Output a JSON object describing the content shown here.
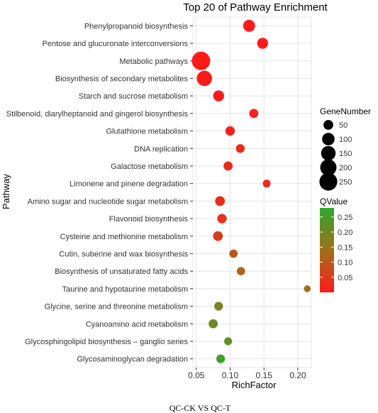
{
  "chart_data": {
    "type": "scatter",
    "title": "Top 20 of Pathway Enrichment",
    "xlabel": "RichFactor",
    "ylabel": "Pathway",
    "xlim": [
      0.045,
      0.22
    ],
    "xticks": [
      "0.05",
      "0.10",
      "0.15",
      "0.20"
    ],
    "xtick_values": [
      0.05,
      0.1,
      0.15,
      0.2
    ],
    "grid": true,
    "legend_placement": "right",
    "size_legend": {
      "title": "GeneNumber",
      "items": [
        {
          "label": "50",
          "value": 50
        },
        {
          "label": "100",
          "value": 100
        },
        {
          "label": "150",
          "value": 150
        },
        {
          "label": "200",
          "value": 200
        },
        {
          "label": "250",
          "value": 250
        }
      ]
    },
    "color_legend": {
      "title": "QValue",
      "ticks": [
        "0.25",
        "0.20",
        "0.15",
        "0.10",
        "0.05"
      ],
      "tick_values": [
        0.25,
        0.2,
        0.15,
        0.1,
        0.05
      ],
      "range": [
        0.0,
        0.28
      ],
      "low_color": "#ff1a1a",
      "mid_color": "#a0701a",
      "high_color": "#2ea82e"
    },
    "points": [
      {
        "pathway": "Phenylpropanoid biosynthesis",
        "rich_factor": 0.128,
        "gene_number": 90,
        "qvalue": 0.0
      },
      {
        "pathway": "Pentose and glucuronate interconversions",
        "rich_factor": 0.148,
        "gene_number": 70,
        "qvalue": 0.0
      },
      {
        "pathway": "Metabolic pathways",
        "rich_factor": 0.057,
        "gene_number": 270,
        "qvalue": 0.0
      },
      {
        "pathway": "Biosynthesis of secondary metabolites",
        "rich_factor": 0.062,
        "gene_number": 170,
        "qvalue": 0.0
      },
      {
        "pathway": "Starch and sucrose metabolism",
        "rich_factor": 0.083,
        "gene_number": 70,
        "qvalue": 0.0
      },
      {
        "pathway": "Stilbenoid, diarylheptanoid and gingerol biosynthesis",
        "rich_factor": 0.135,
        "gene_number": 40,
        "qvalue": 0.01
      },
      {
        "pathway": "Glutathione metabolism",
        "rich_factor": 0.1,
        "gene_number": 45,
        "qvalue": 0.01
      },
      {
        "pathway": "DNA replication",
        "rich_factor": 0.115,
        "gene_number": 35,
        "qvalue": 0.02
      },
      {
        "pathway": "Galactose metabolism",
        "rich_factor": 0.097,
        "gene_number": 40,
        "qvalue": 0.02
      },
      {
        "pathway": "Limonene and pinene degradation",
        "rich_factor": 0.154,
        "gene_number": 25,
        "qvalue": 0.03
      },
      {
        "pathway": "Amino sugar and nucleotide sugar metabolism",
        "rich_factor": 0.085,
        "gene_number": 50,
        "qvalue": 0.03
      },
      {
        "pathway": "Flavonoid biosynthesis",
        "rich_factor": 0.088,
        "gene_number": 45,
        "qvalue": 0.04
      },
      {
        "pathway": "Cysteine and methionine metabolism",
        "rich_factor": 0.082,
        "gene_number": 50,
        "qvalue": 0.06
      },
      {
        "pathway": "Cutin, suberine and wax biosynthesis",
        "rich_factor": 0.105,
        "gene_number": 30,
        "qvalue": 0.1
      },
      {
        "pathway": "Biosynthesis of unsaturated fatty acids",
        "rich_factor": 0.116,
        "gene_number": 30,
        "qvalue": 0.12
      },
      {
        "pathway": "Taurine and hypotaurine metabolism",
        "rich_factor": 0.214,
        "gene_number": 15,
        "qvalue": 0.14
      },
      {
        "pathway": "Glycine, serine and threonine metabolism",
        "rich_factor": 0.083,
        "gene_number": 35,
        "qvalue": 0.18
      },
      {
        "pathway": "Cyanoamino acid metabolism",
        "rich_factor": 0.075,
        "gene_number": 40,
        "qvalue": 0.2
      },
      {
        "pathway": "Glycosphingolipid biosynthesis – ganglio series",
        "rich_factor": 0.097,
        "gene_number": 25,
        "qvalue": 0.22
      },
      {
        "pathway": "Glycosaminoglycan degradation",
        "rich_factor": 0.086,
        "gene_number": 35,
        "qvalue": 0.26
      }
    ]
  },
  "caption": "QC-CK VS QC-T"
}
